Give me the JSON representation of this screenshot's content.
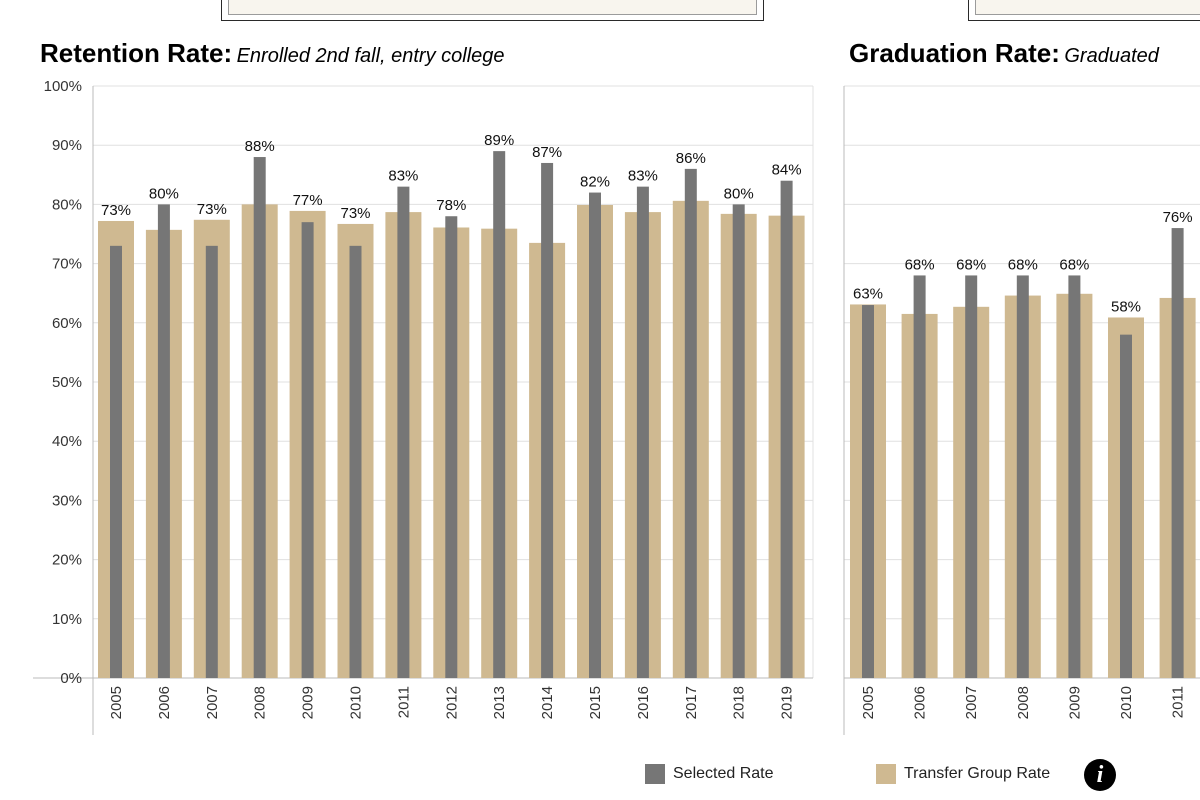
{
  "colors": {
    "selected": "#767676",
    "transfer": "#cfb991",
    "grid": "#e0e0e0",
    "axis": "#bbbbbb"
  },
  "legend": {
    "selected_label": "Selected Rate",
    "transfer_label": "Transfer Group Rate",
    "info_icon": "info-icon"
  },
  "chart_data": [
    {
      "type": "bar",
      "title": "Retention Rate:",
      "subtitle": "Enrolled 2nd fall, entry college",
      "categories": [
        "2005",
        "2006",
        "2007",
        "2008",
        "2009",
        "2010",
        "2011",
        "2012",
        "2013",
        "2014",
        "2015",
        "2016",
        "2017",
        "2018",
        "2019"
      ],
      "series": [
        {
          "name": "Selected Rate",
          "values": [
            73,
            80,
            73,
            88,
            77,
            73,
            83,
            78,
            89,
            87,
            82,
            83,
            86,
            80,
            84
          ]
        },
        {
          "name": "Transfer Group Rate",
          "values": [
            77.2,
            75.7,
            77.4,
            80,
            78.9,
            76.7,
            78.7,
            76.1,
            75.9,
            73.5,
            79.9,
            78.7,
            80.6,
            78.4,
            78.1
          ]
        }
      ],
      "data_labels": [
        "73%",
        "80%",
        "73%",
        "88%",
        "77%",
        "73%",
        "83%",
        "78%",
        "89%",
        "87%",
        "82%",
        "83%",
        "86%",
        "80%",
        "84%"
      ],
      "yticks": [
        "0%",
        "10%",
        "20%",
        "30%",
        "40%",
        "50%",
        "60%",
        "70%",
        "80%",
        "90%",
        "100%"
      ],
      "ylim": [
        0,
        100
      ],
      "grid": true
    },
    {
      "type": "bar",
      "title": "Graduation Rate:",
      "subtitle": "Graduated",
      "categories": [
        "2005",
        "2006",
        "2007",
        "2008",
        "2009",
        "2010",
        "2011"
      ],
      "series": [
        {
          "name": "Selected Rate",
          "values": [
            63,
            68,
            68,
            68,
            68,
            58,
            76
          ]
        },
        {
          "name": "Transfer Group Rate",
          "values": [
            63.1,
            61.5,
            62.7,
            64.6,
            64.9,
            60.9,
            64.2
          ]
        }
      ],
      "data_labels": [
        "63%",
        "68%",
        "68%",
        "68%",
        "68%",
        "58%",
        "76%"
      ],
      "ylim": [
        0,
        100
      ],
      "grid": true
    }
  ]
}
